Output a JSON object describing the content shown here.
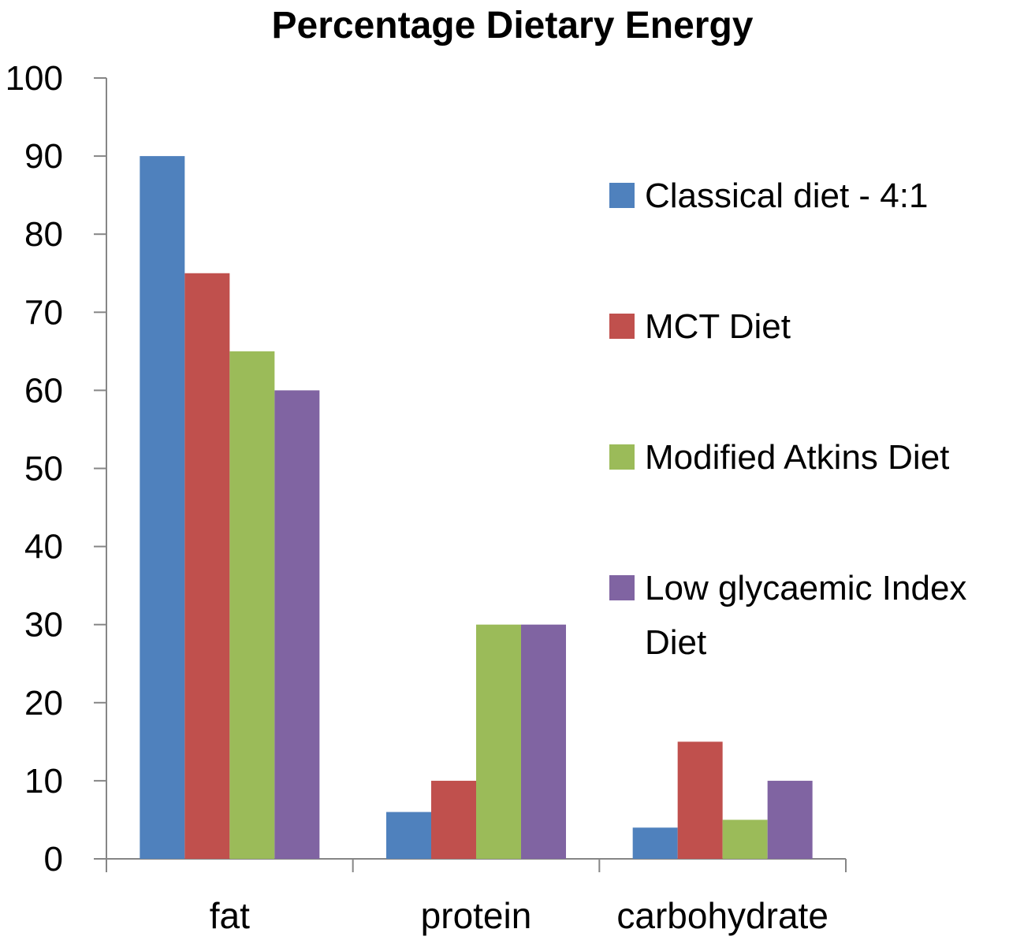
{
  "chart_data": {
    "type": "bar",
    "title": "Percentage Dietary Energy",
    "xlabel": "",
    "ylabel": "",
    "categories": [
      "fat",
      "protein",
      "carbohydrate"
    ],
    "ylim": [
      0,
      100
    ],
    "yticks": [
      0,
      10,
      20,
      30,
      40,
      50,
      60,
      70,
      80,
      90,
      100
    ],
    "ytick_labels": [
      "0",
      "10",
      "20",
      "30",
      "40",
      "50",
      "60",
      "70",
      "80",
      "90",
      "100"
    ],
    "grid": false,
    "legend_position": "right",
    "series": [
      {
        "name": "Classical diet - 4:1",
        "legend_lines": [
          "Classical diet - 4:1"
        ],
        "values": [
          90,
          6,
          4
        ],
        "color": "#4F81BD"
      },
      {
        "name": "MCT Diet",
        "legend_lines": [
          "MCT Diet"
        ],
        "values": [
          75,
          10,
          15
        ],
        "color": "#C0504D"
      },
      {
        "name": "Modified Atkins Diet",
        "legend_lines": [
          "Modified Atkins Diet"
        ],
        "values": [
          65,
          30,
          5
        ],
        "color": "#9BBB59"
      },
      {
        "name": "Low glycaemic Index Diet",
        "legend_lines": [
          "Low glycaemic Index",
          "Diet"
        ],
        "values": [
          60,
          30,
          10
        ],
        "color": "#8064A2"
      }
    ]
  }
}
